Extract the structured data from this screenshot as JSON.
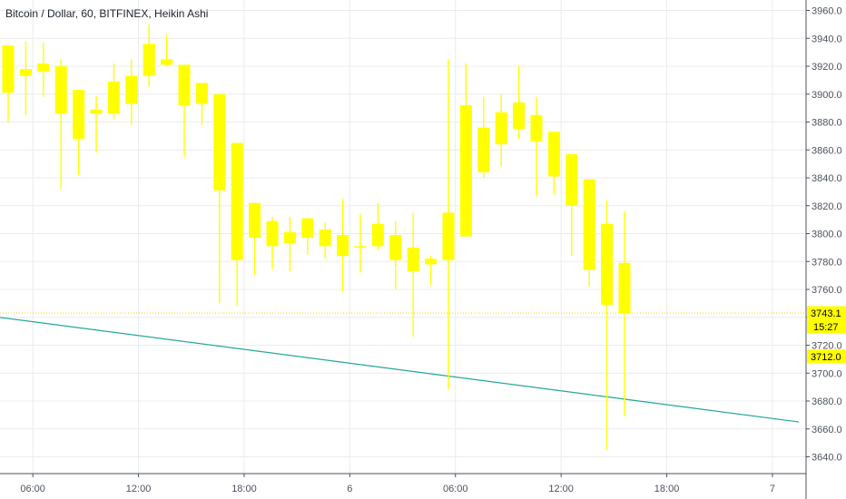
{
  "chart_data": {
    "type": "candlestick",
    "title": "Bitcoin / Dollar, 60, BITFINEX, Heikin Ashi",
    "ylim": [
      3630,
      3968
    ],
    "y_ticks": [
      "3960.0",
      "3940.0",
      "3920.0",
      "3900.0",
      "3880.0",
      "3860.0",
      "3840.0",
      "3820.0",
      "3800.0",
      "3780.0",
      "3760.0",
      "3740.0",
      "3720.0",
      "3700.0",
      "3680.0",
      "3660.0",
      "3640.0"
    ],
    "x_ticks": [
      {
        "label": "06:00",
        "bar": 1.4
      },
      {
        "label": "12:00",
        "bar": 7.4
      },
      {
        "label": "18:00",
        "bar": 13.4
      },
      {
        "label": "6",
        "bar": 19.4
      },
      {
        "label": "06:00",
        "bar": 25.4
      },
      {
        "label": "12:00",
        "bar": 31.4
      },
      {
        "label": "18:00",
        "bar": 37.4
      },
      {
        "label": "7",
        "bar": 43.4
      }
    ],
    "candles": [
      {
        "o": 3901,
        "c": 3935,
        "h": 3935,
        "l": 3880
      },
      {
        "o": 3918,
        "c": 3913,
        "h": 3938,
        "l": 3885
      },
      {
        "o": 3916,
        "c": 3922,
        "h": 3937,
        "l": 3898
      },
      {
        "o": 3920,
        "c": 3886,
        "h": 3925,
        "l": 3832
      },
      {
        "o": 3903,
        "c": 3868,
        "h": 3903,
        "l": 3842
      },
      {
        "o": 3886,
        "c": 3889,
        "h": 3899,
        "l": 3858
      },
      {
        "o": 3886,
        "c": 3909,
        "h": 3922,
        "l": 3882
      },
      {
        "o": 3893,
        "c": 3913,
        "h": 3925,
        "l": 3878
      },
      {
        "o": 3913,
        "c": 3936,
        "h": 3950,
        "l": 3905
      },
      {
        "o": 3921,
        "c": 3925,
        "h": 3943,
        "l": 3920
      },
      {
        "o": 3892,
        "c": 3921,
        "h": 3921,
        "l": 3855
      },
      {
        "o": 3893,
        "c": 3908,
        "h": 3908,
        "l": 3878
      },
      {
        "o": 3831,
        "c": 3900,
        "h": 3900,
        "l": 3750
      },
      {
        "o": 3781,
        "c": 3865,
        "h": 3865,
        "l": 3748
      },
      {
        "o": 3797,
        "c": 3822,
        "h": 3822,
        "l": 3770
      },
      {
        "o": 3791,
        "c": 3809,
        "h": 3812,
        "l": 3774
      },
      {
        "o": 3793,
        "c": 3801,
        "h": 3812,
        "l": 3773
      },
      {
        "o": 3797,
        "c": 3811,
        "h": 3811,
        "l": 3785
      },
      {
        "o": 3791,
        "c": 3803,
        "h": 3808,
        "l": 3782
      },
      {
        "o": 3784,
        "c": 3799,
        "h": 3825,
        "l": 3758
      },
      {
        "o": 3791,
        "c": 3790,
        "h": 3814,
        "l": 3772
      },
      {
        "o": 3791,
        "c": 3807,
        "h": 3822,
        "l": 3788
      },
      {
        "o": 3781,
        "c": 3799,
        "h": 3809,
        "l": 3760
      },
      {
        "o": 3773,
        "c": 3790,
        "h": 3815,
        "l": 3726
      },
      {
        "o": 3778,
        "c": 3782,
        "h": 3784,
        "l": 3763
      },
      {
        "o": 3781,
        "c": 3815,
        "h": 3925,
        "l": 3688
      },
      {
        "o": 3798,
        "c": 3892,
        "h": 3922,
        "l": 3798
      },
      {
        "o": 3844,
        "c": 3876,
        "h": 3898,
        "l": 3840
      },
      {
        "o": 3864,
        "c": 3887,
        "h": 3900,
        "l": 3848
      },
      {
        "o": 3875,
        "c": 3894,
        "h": 3920,
        "l": 3868
      },
      {
        "o": 3866,
        "c": 3885,
        "h": 3898,
        "l": 3827
      },
      {
        "o": 3841,
        "c": 3873,
        "h": 3873,
        "l": 3828
      },
      {
        "o": 3820,
        "c": 3857,
        "h": 3857,
        "l": 3784
      },
      {
        "o": 3774,
        "c": 3839,
        "h": 3839,
        "l": 3762
      },
      {
        "o": 3749,
        "c": 3807,
        "h": 3824,
        "l": 3645
      },
      {
        "o": 3743,
        "c": 3779,
        "h": 3816,
        "l": 3669
      }
    ],
    "trendline": {
      "start_bar": -0.5,
      "start_price": 3740,
      "end_bar": 44.9,
      "end_price": 3665
    },
    "last_price_line": 3743.1,
    "price_labels": [
      {
        "text": "3743.1",
        "sub": "15:27",
        "price": 3743.1,
        "bg": "#ffff00"
      },
      {
        "text": "3712.0",
        "price": 3712.0,
        "bg": "#ffff00"
      }
    ],
    "colors": {
      "candle": "#ffff00",
      "trendline": "#26a69a",
      "grid": "#e9ecf0",
      "axis_text": "#4c525e"
    }
  }
}
